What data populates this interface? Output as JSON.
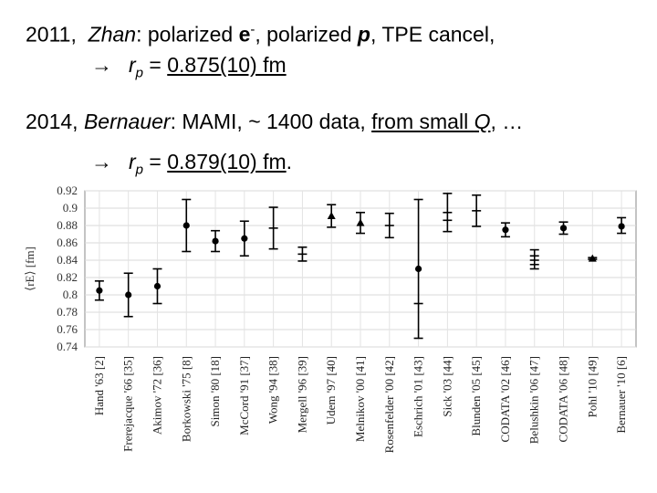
{
  "header": {
    "line1": {
      "year": "2011,",
      "author": "Zhan",
      "colon_a": ": polarized",
      "e": "e",
      "e_sup": "-",
      "mid": ", polarized",
      "p": "p",
      "rest": ",  TPE  cancel,"
    },
    "line2": {
      "arrow": "→",
      "r": "r",
      "sub": "p",
      "eq": " = ",
      "value": "0.875(10) fm"
    },
    "line3": {
      "year": "2014,",
      "author": "Bernauer",
      "mid": ":  MAMI,  ~ 1400 data,  ",
      "small": "from small ",
      "q": "Q",
      "end": ", …"
    },
    "line4": {
      "arrow": "→",
      "r": "r",
      "sub": "p",
      "eq": " = ",
      "value": "0.879(10) fm",
      "dot": "."
    }
  },
  "chart_data": {
    "type": "scatter",
    "ylabel": "⟨rE⟩ [fm]",
    "ylim": [
      0.74,
      0.92
    ],
    "yticks": [
      "0.74",
      "0.76",
      "0.78",
      "0.8",
      "0.82",
      "0.84",
      "0.86",
      "0.88",
      "0.9",
      "0.92"
    ],
    "grid": true,
    "categories": [
      "Hand '63 [2]",
      "Frerejacque '66 [35]",
      "Akimov '72 [36]",
      "Borkowski '75 [8]",
      "Simon '80 [18]",
      "McCord '91 [37]",
      "Wong '94 [38]",
      "Mergell '96 [39]",
      "Udem '97 [40]",
      "Melnikov '00 [41]",
      "Rosenfelder '00 [42]",
      "Eschrich '01 [43]",
      "Sick '03 [44]",
      "Blunden '05 [45]",
      "CODATA '02 [46]",
      "Belushkin '06 [47]",
      "CODATA '06 [48]",
      "Pohl '10 [49]",
      "Bernauer '10 [6]"
    ],
    "values": [
      0.805,
      0.8,
      0.81,
      0.88,
      0.862,
      0.865,
      0.877,
      0.847,
      0.891,
      0.883,
      0.88,
      0.83,
      0.895,
      0.897,
      0.875,
      0.84,
      0.877,
      0.842,
      0.879
    ],
    "errors": [
      [
        0.011,
        0.011
      ],
      [
        0.025,
        0.025
      ],
      [
        0.02,
        0.02
      ],
      [
        0.03,
        0.03
      ],
      [
        0.012,
        0.012
      ],
      [
        0.02,
        0.02
      ],
      [
        0.024,
        0.024
      ],
      [
        0.008,
        0.008
      ],
      [
        0.013,
        0.013
      ],
      [
        0.012,
        0.012
      ],
      [
        0.014,
        0.014
      ],
      [
        0.08,
        0.08
      ],
      [
        0.022,
        0.022
      ],
      [
        0.018,
        0.018
      ],
      [
        0.008,
        0.008
      ],
      [
        0.01,
        0.012
      ],
      [
        0.007,
        0.007
      ],
      [
        0.001,
        0.001
      ],
      [
        0.008,
        0.01
      ]
    ],
    "markers": [
      "circle",
      "circle",
      "circle",
      "circle",
      "circle",
      "circle",
      "none",
      "none",
      "triangle",
      "triangle",
      "none",
      "circle",
      "none",
      "none",
      "circle",
      "none",
      "circle",
      "triangle",
      "circle"
    ],
    "secondary_bars": [
      {
        "index": 11,
        "y": 0.79
      },
      {
        "index": 12,
        "y": 0.886
      },
      {
        "index": 15,
        "y": 0.835
      },
      {
        "index": 15,
        "y": 0.845
      }
    ]
  }
}
